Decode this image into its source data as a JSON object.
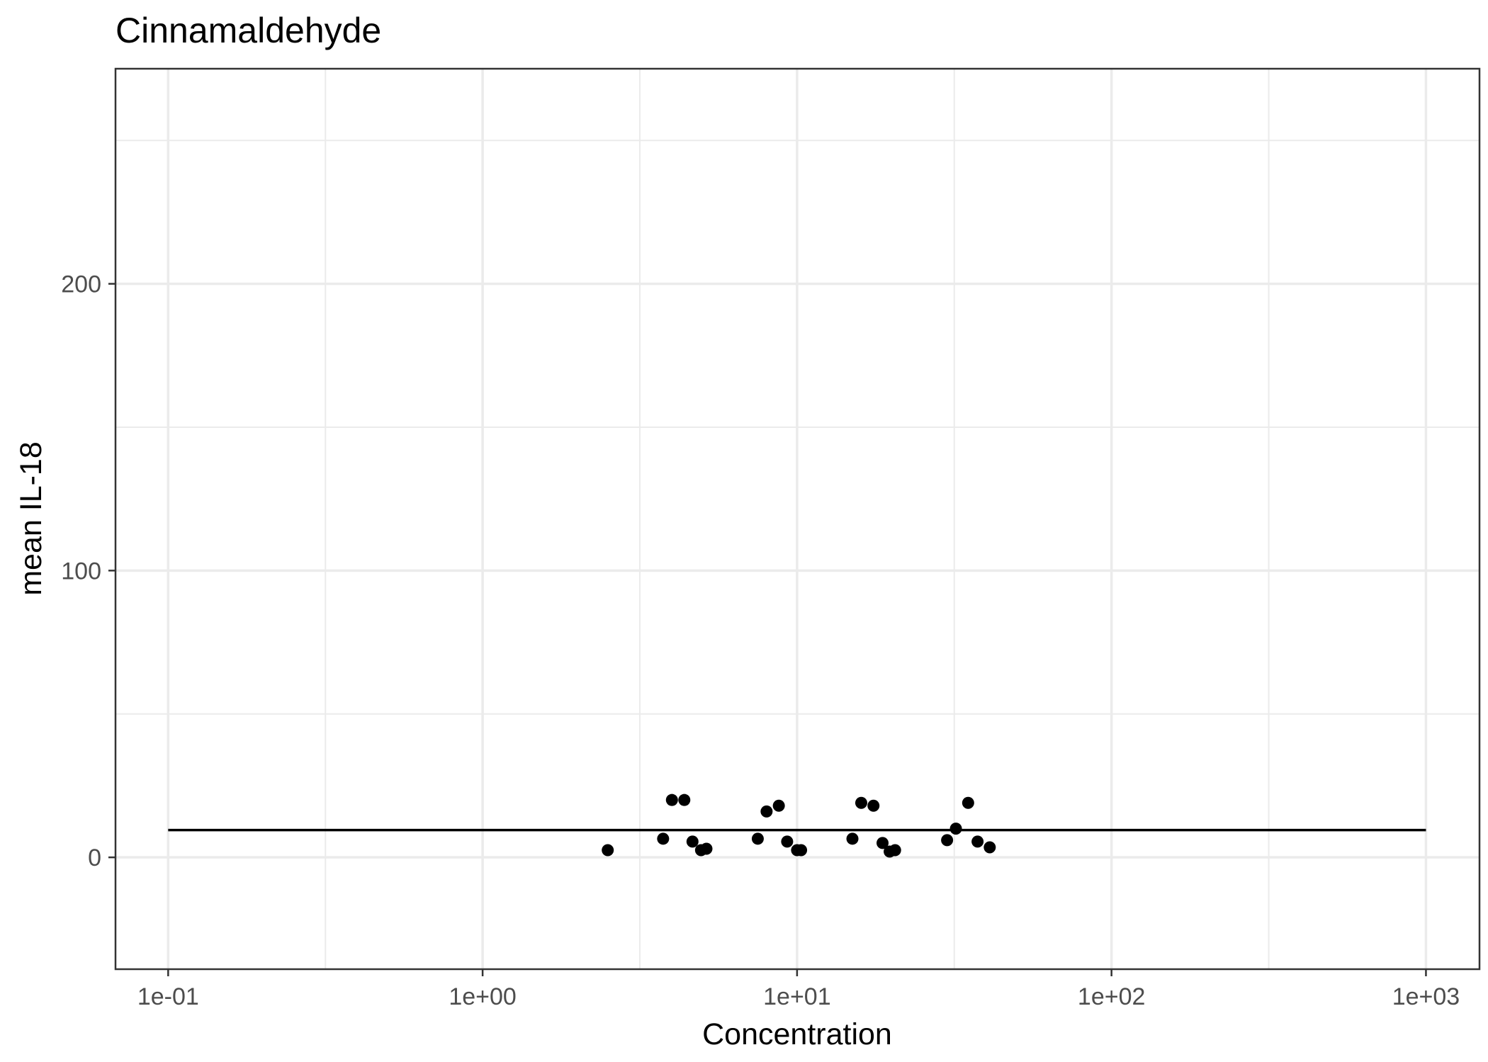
{
  "chart_data": {
    "type": "scatter",
    "title": "Cinnamaldehyde",
    "xlabel": "Concentration",
    "ylabel": "mean IL-18",
    "x_scale": "log10",
    "xlim": [
      0.068,
      1480
    ],
    "ylim": [
      -39,
      275
    ],
    "x_ticks": [
      0.1,
      1,
      10,
      100,
      1000
    ],
    "x_tick_labels": [
      "1e-01",
      "1e+00",
      "1e+01",
      "1e+02",
      "1e+03"
    ],
    "y_ticks": [
      0,
      100,
      200
    ],
    "y_tick_labels": [
      "0",
      "100",
      "200"
    ],
    "grid": true,
    "legend": "none",
    "colors": {
      "points": "#000000",
      "line": "#000000",
      "grid": "#ebebeb",
      "panel_border": "#333333"
    },
    "fit_line": {
      "x": [
        0.1,
        1000
      ],
      "y": [
        9.5,
        9.5
      ]
    },
    "points": [
      {
        "x": 2.5,
        "y": 2.5
      },
      {
        "x": 3.75,
        "y": 6.5
      },
      {
        "x": 4.0,
        "y": 20
      },
      {
        "x": 4.38,
        "y": 20
      },
      {
        "x": 4.65,
        "y": 5.5
      },
      {
        "x": 4.95,
        "y": 2.5
      },
      {
        "x": 5.15,
        "y": 3
      },
      {
        "x": 7.5,
        "y": 6.5
      },
      {
        "x": 8.0,
        "y": 16
      },
      {
        "x": 8.75,
        "y": 18
      },
      {
        "x": 9.3,
        "y": 5.5
      },
      {
        "x": 10.0,
        "y": 2.5
      },
      {
        "x": 10.3,
        "y": 2.5
      },
      {
        "x": 15.0,
        "y": 6.5
      },
      {
        "x": 16.0,
        "y": 19
      },
      {
        "x": 17.5,
        "y": 18
      },
      {
        "x": 18.7,
        "y": 5
      },
      {
        "x": 19.7,
        "y": 2
      },
      {
        "x": 20.5,
        "y": 2.5
      },
      {
        "x": 30.0,
        "y": 6
      },
      {
        "x": 32.0,
        "y": 10
      },
      {
        "x": 35.0,
        "y": 19
      },
      {
        "x": 37.5,
        "y": 5.5
      },
      {
        "x": 41.0,
        "y": 3.5
      }
    ]
  }
}
